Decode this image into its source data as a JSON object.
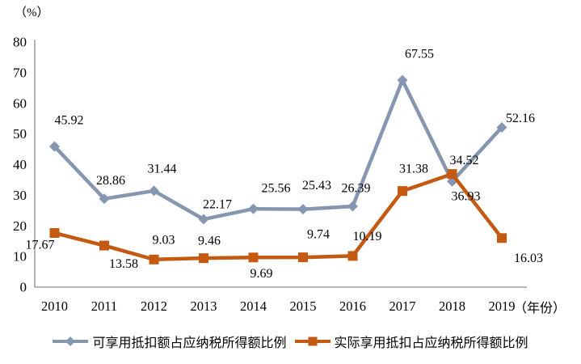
{
  "chart_data": {
    "type": "line",
    "title": "",
    "ylabel": "（%）",
    "xlabel": "（年份）",
    "categories": [
      "2010",
      "2011",
      "2012",
      "2013",
      "2014",
      "2015",
      "2016",
      "2017",
      "2018",
      "2019"
    ],
    "yticks": [
      "0",
      "10",
      "20",
      "30",
      "40",
      "50",
      "60",
      "70",
      "80"
    ],
    "ylim": [
      0,
      80
    ],
    "grid": false,
    "legend_position": "bottom",
    "axis_color": "#8c8c8c",
    "text_color": "#000000",
    "series": [
      {
        "name": "可享用抵扣额占应纳税所得额比例",
        "color": "#8496B0",
        "marker": "diamond",
        "values": [
          45.92,
          28.86,
          31.44,
          22.17,
          25.56,
          25.43,
          26.39,
          67.55,
          34.52,
          52.16
        ],
        "label_dx": [
          18,
          8,
          10,
          17,
          28,
          17,
          4,
          21,
          15,
          23
        ],
        "label_dy": [
          -33,
          -23,
          -28,
          -19,
          -26,
          -30,
          -23,
          -33,
          -27,
          -12
        ]
      },
      {
        "name": "实际享用抵扣占应纳税所得额比例",
        "color": "#C45911",
        "marker": "square",
        "values": [
          17.67,
          13.58,
          9.03,
          9.46,
          9.69,
          9.74,
          10.19,
          31.38,
          36.93,
          16.03
        ],
        "label_dx": [
          -18,
          24,
          12,
          7,
          10,
          19,
          18,
          14,
          17,
          33
        ],
        "label_dy": [
          14,
          22,
          -25,
          -22,
          19,
          -29,
          -25,
          -28,
          27,
          24
        ]
      }
    ]
  }
}
